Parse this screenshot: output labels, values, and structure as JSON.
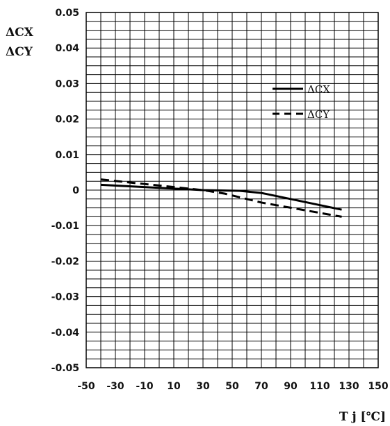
{
  "chart_data": {
    "type": "line",
    "xlabel": "T j [℃]",
    "ylabel_lines": [
      "ΔCX",
      "ΔCY"
    ],
    "xlim": [
      -50,
      150
    ],
    "ylim": [
      -0.05,
      0.05
    ],
    "x_ticks": [
      "-50",
      "-30",
      "-10",
      "10",
      "30",
      "50",
      "70",
      "90",
      "110",
      "130",
      "150"
    ],
    "y_ticks": [
      "0.05",
      "0.04",
      "0.03",
      "0.02",
      "0.01",
      "0",
      "-0.01",
      "-0.02",
      "-0.03",
      "-0.04",
      "-0.05"
    ],
    "x_grid_step": 10,
    "y_grid_step": 0.0025,
    "grid": true,
    "legend_position": "top-right",
    "series": [
      {
        "name": "ΔCX",
        "style": "solid",
        "x": [
          -40,
          30,
          55,
          70,
          125
        ],
        "y": [
          0.0015,
          0.0,
          -0.0002,
          -0.0008,
          -0.0055
        ]
      },
      {
        "name": "ΔCY",
        "style": "dashed",
        "x": [
          -40,
          30,
          45,
          70,
          125
        ],
        "y": [
          0.003,
          0.0,
          -0.001,
          -0.0035,
          -0.0075
        ]
      }
    ]
  }
}
